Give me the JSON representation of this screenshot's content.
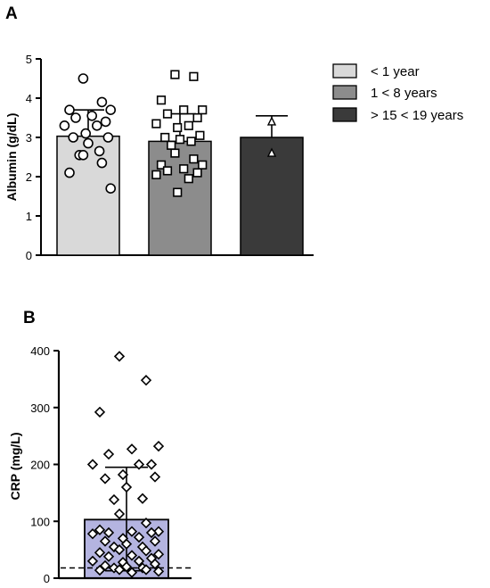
{
  "chart_data": [
    {
      "panel_label": "A",
      "type": "bar",
      "ylabel": "Albumin (g/dL)",
      "ylim": [
        0,
        5
      ],
      "yticks": [
        "0",
        "1",
        "2",
        "3",
        "4",
        "5"
      ],
      "legend_position": "right",
      "series": [
        {
          "name": "< 1 year",
          "color": "#d9d9d9",
          "marker": "circle",
          "mean": 3.03,
          "sd_upper": 3.7,
          "points": [
            4.5,
            3.9,
            3.7,
            3.7,
            3.55,
            3.5,
            3.4,
            3.3,
            3.3,
            3.1,
            3.0,
            3.0,
            2.85,
            2.65,
            2.55,
            2.55,
            2.35,
            2.1,
            1.7
          ]
        },
        {
          "name": "1 < 8 years",
          "color": "#8c8c8c",
          "marker": "square",
          "mean": 2.9,
          "sd_upper": 3.6,
          "points": [
            4.6,
            4.55,
            3.95,
            3.7,
            3.7,
            3.6,
            3.5,
            3.35,
            3.3,
            3.25,
            3.05,
            3.0,
            2.95,
            2.9,
            2.8,
            2.6,
            2.45,
            2.3,
            2.3,
            2.2,
            2.15,
            2.1,
            2.05,
            1.95,
            1.6
          ]
        },
        {
          "name": "> 15 < 19 years",
          "color": "#3a3a3a",
          "marker": "triangle",
          "mean": 3.0,
          "sd_upper": 3.55,
          "points": [
            3.4,
            2.6
          ]
        }
      ]
    },
    {
      "panel_label": "B",
      "type": "bar",
      "ylabel": "CRP (mg/L)",
      "ylim": [
        0,
        400
      ],
      "yticks": [
        "0",
        "100",
        "200",
        "300",
        "400"
      ],
      "reference_line": 18,
      "series": [
        {
          "name": "",
          "color": "#b4b4e0",
          "marker": "diamond",
          "mean": 103,
          "sd_upper": 195,
          "sd_lower": 13,
          "points": [
            390,
            348,
            292,
            232,
            227,
            218,
            200,
            200,
            200,
            182,
            178,
            175,
            160,
            140,
            138,
            113,
            97,
            85,
            82,
            82,
            80,
            80,
            78,
            72,
            70,
            65,
            65,
            60,
            55,
            55,
            50,
            48,
            45,
            42,
            40,
            38,
            35,
            30,
            30,
            28,
            25,
            22,
            20,
            18,
            18,
            15,
            15,
            14,
            12,
            10
          ]
        }
      ]
    }
  ]
}
